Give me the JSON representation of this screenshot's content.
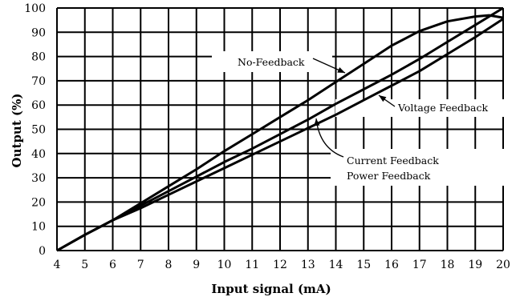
{
  "chart_data": {
    "type": "line",
    "xlabel": "Input signal (mA)",
    "ylabel": "Output (%)",
    "xlim": [
      4,
      20
    ],
    "ylim": [
      0,
      100
    ],
    "x_ticks": [
      "4",
      "5",
      "6",
      "7",
      "8",
      "9",
      "10",
      "11",
      "12",
      "13",
      "14",
      "15",
      "16",
      "17",
      "18",
      "19",
      "20"
    ],
    "y_ticks": [
      "0",
      "10",
      "20",
      "30",
      "40",
      "50",
      "60",
      "70",
      "80",
      "90",
      "100"
    ],
    "grid": true,
    "series": [
      {
        "name": "No-Feedback",
        "x": [
          4,
          5,
          6,
          7,
          8,
          9,
          10,
          11,
          12,
          13,
          14,
          15,
          16,
          17,
          18,
          19,
          19.5,
          20
        ],
        "y": [
          0,
          6.5,
          12.5,
          19.5,
          26.5,
          33.5,
          41,
          48,
          55,
          62,
          69.5,
          77,
          84.5,
          90.5,
          94.5,
          96.5,
          97,
          96
        ]
      },
      {
        "name": "Voltage Feedback",
        "x": [
          4,
          5,
          6,
          7,
          8,
          9,
          10,
          11,
          12,
          13,
          14,
          15,
          16,
          17,
          18,
          19,
          20
        ],
        "y": [
          0,
          6.5,
          12.5,
          18.5,
          24.5,
          30.5,
          36.5,
          42,
          48,
          54,
          60.5,
          66.5,
          72.5,
          79,
          86,
          93,
          100
        ]
      },
      {
        "name": "Current Feedback / Power Feedback",
        "x": [
          4,
          5,
          6,
          7,
          8,
          9,
          10,
          11,
          12,
          13,
          14,
          15,
          16,
          17,
          18,
          19,
          20
        ],
        "y": [
          0,
          6.5,
          12.5,
          17.5,
          23,
          28.5,
          34,
          39.5,
          45,
          50.5,
          56,
          62,
          68,
          74,
          81,
          88,
          95.5
        ]
      }
    ],
    "annotations": [
      {
        "text": "No-Feedback"
      },
      {
        "text": "Voltage Feedback"
      },
      {
        "text": "Current Feedback"
      },
      {
        "text": "Power Feedback"
      }
    ]
  }
}
